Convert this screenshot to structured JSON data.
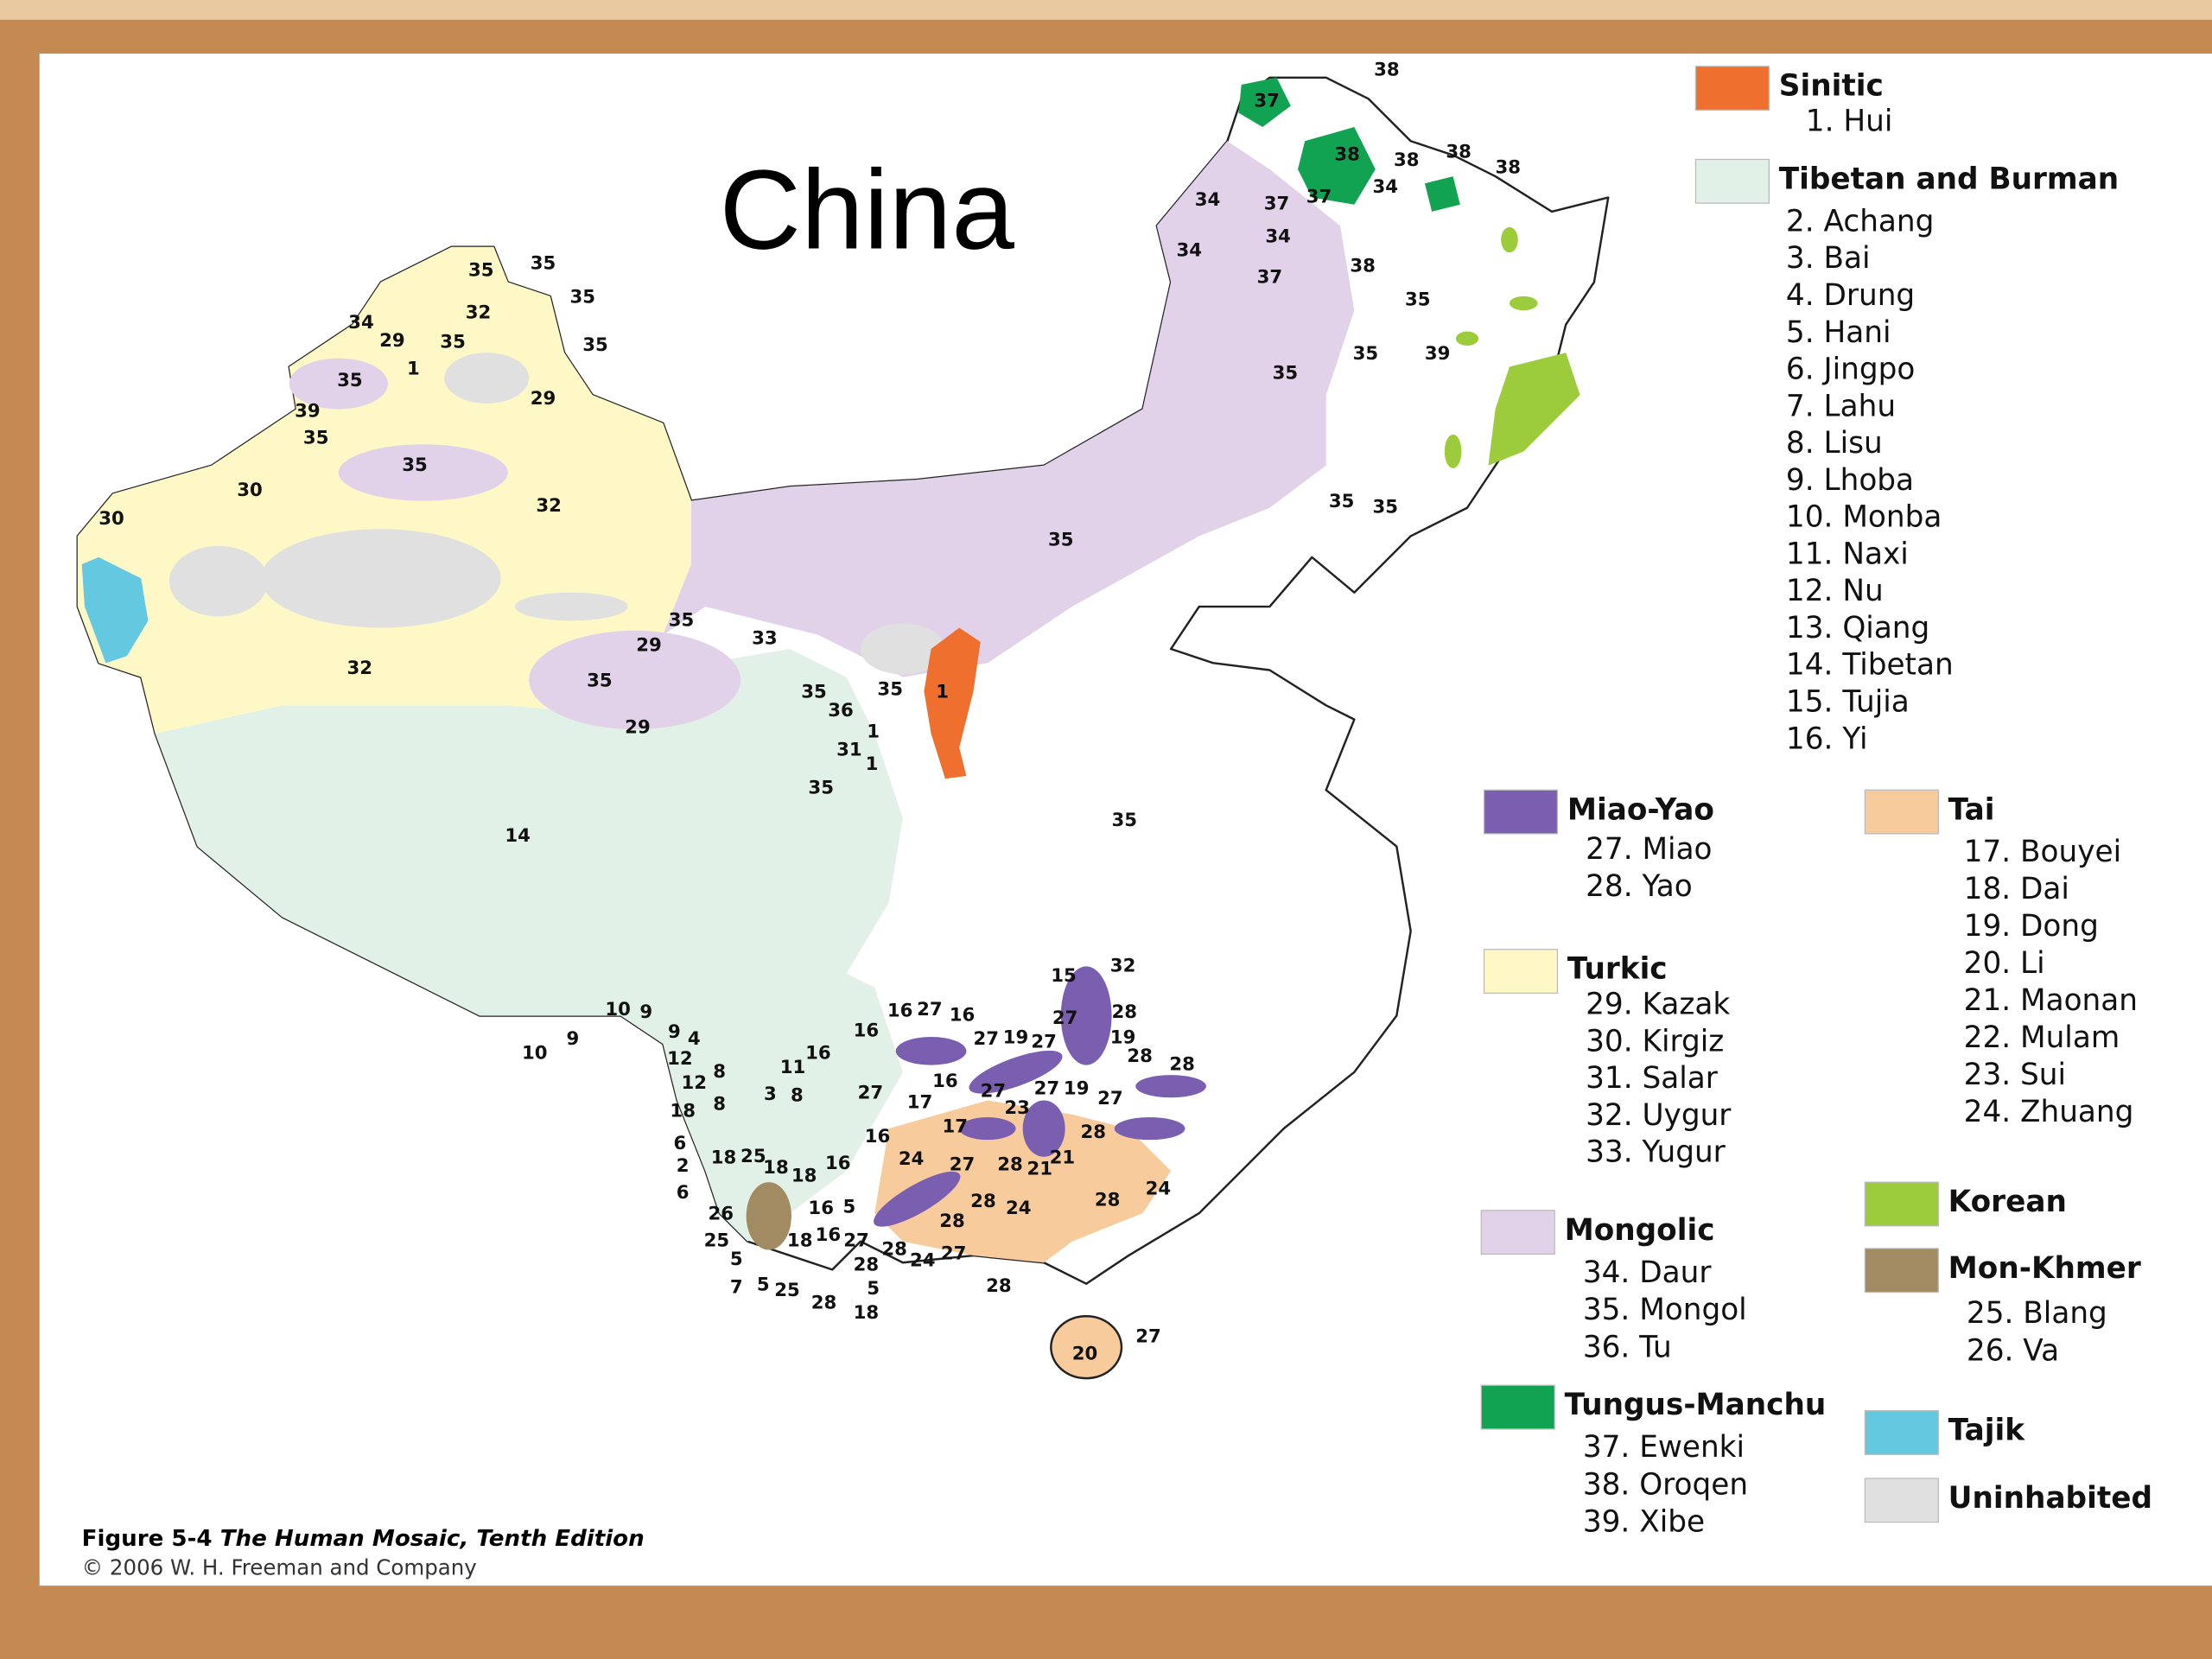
{
  "title": "China",
  "legend": [
    {
      "name": "Sinitic",
      "color": "#ef6f2e",
      "items": [
        "1. Hui"
      ]
    },
    {
      "name": "Tibetan and Burman",
      "color": "#e2f1e7",
      "items": [
        "2. Achang",
        "3. Bai",
        "4. Drung",
        "5. Hani",
        "6. Jingpo",
        "7. Lahu",
        "8. Lisu",
        "9. Lhoba",
        "10. Monba",
        "11. Naxi",
        "12. Nu",
        "13. Qiang",
        "14. Tibetan",
        "15. Tujia",
        "16. Yi"
      ]
    },
    {
      "name": "Miao-Yao",
      "color": "#7a5fb0",
      "items": [
        "27. Miao",
        "28. Yao"
      ]
    },
    {
      "name": "Turkic",
      "color": "#fdf8c6",
      "items": [
        "29. Kazak",
        "30. Kirgiz",
        "31. Salar",
        "32. Uygur",
        "33. Yugur"
      ]
    },
    {
      "name": "Mongolic",
      "color": "#e1d2e9",
      "items": [
        "34. Daur",
        "35. Mongol",
        "36. Tu"
      ]
    },
    {
      "name": "Tungus-Manchu",
      "color": "#11a352",
      "items": [
        "37. Ewenki",
        "38. Oroqen",
        "39. Xibe"
      ]
    },
    {
      "name": "Tai",
      "color": "#f8cb9c",
      "items": [
        "17. Bouyei",
        "18. Dai",
        "19. Dong",
        "20. Li",
        "21. Maonan",
        "22. Mulam",
        "23. Sui",
        "24. Zhuang"
      ]
    },
    {
      "name": "Korean",
      "color": "#9ccb3c",
      "items": []
    },
    {
      "name": "Mon-Khmer",
      "color": "#a28a62",
      "items": [
        "25. Blang",
        "26. Va"
      ]
    },
    {
      "name": "Tajik",
      "color": "#63c8e0",
      "items": []
    },
    {
      "name": "Uninhabited",
      "color": "#e0e0e0",
      "items": []
    }
  ],
  "map_labels": [
    "37",
    "38",
    "38",
    "34",
    "38",
    "38",
    "38",
    "37",
    "34",
    "37",
    "34",
    "34",
    "38",
    "37",
    "35",
    "35",
    "39",
    "35",
    "35",
    "35",
    "35",
    "35",
    "35",
    "35",
    "32",
    "34",
    "29",
    "35",
    "35",
    "1",
    "35",
    "29",
    "39",
    "35",
    "35",
    "30",
    "32",
    "30",
    "35",
    "29",
    "33",
    "32",
    "35",
    "35",
    "35",
    "1",
    "36",
    "29",
    "1",
    "31",
    "1",
    "35",
    "14",
    "35",
    "15",
    "32",
    "10",
    "9",
    "10",
    "9",
    "16",
    "27",
    "16",
    "27",
    "28",
    "16",
    "27",
    "19",
    "27",
    "19",
    "28",
    "28",
    "11",
    "16",
    "3",
    "8",
    "16",
    "27",
    "27",
    "19",
    "27",
    "27",
    "17",
    "23",
    "17",
    "16",
    "28",
    "24",
    "27",
    "28",
    "21",
    "21",
    "16",
    "18",
    "25",
    "18",
    "18",
    "24",
    "28",
    "28",
    "24",
    "26",
    "5",
    "28",
    "16",
    "25",
    "18",
    "16",
    "27",
    "28",
    "24",
    "27",
    "5",
    "28",
    "5",
    "7",
    "5",
    "25",
    "28",
    "18",
    "28",
    "20",
    "27",
    "9",
    "4",
    "12",
    "8",
    "12",
    "8",
    "18",
    "6",
    "2",
    "6"
  ],
  "caption": {
    "figure": "Figure 5-4",
    "book": "The Human Mosaic, Tenth Edition",
    "copyright": "© 2006 W. H. Freeman and Company"
  }
}
